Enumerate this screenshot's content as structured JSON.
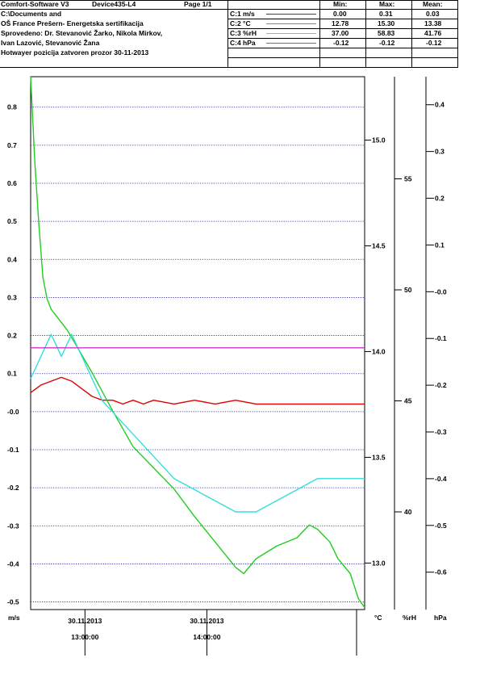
{
  "header": {
    "app": "Comfort-Software V3",
    "device": "Device435-L4",
    "page": "Page 1/1",
    "info_lines": [
      "C:\\Documents and",
      "OŠ France Prešern- Energetska sertifikacija",
      "Sprovedeno: Dr. Stevanović Žarko, Nikola Mirkov,",
      "Ivan Lazović, Stevanović Žana",
      "Hotwayer pozicija zatvoren prozor 30-11-2013"
    ],
    "col_min": "Min:",
    "col_max": "Max:",
    "col_mean": "Mean:",
    "channels": [
      {
        "label": "C:1 m/s",
        "color": "#e00000",
        "min": "0.00",
        "max": "0.31",
        "mean": "0.03"
      },
      {
        "label": "C:2 °C",
        "color": "#22cc22",
        "min": "12.78",
        "max": "15.30",
        "mean": "13.38"
      },
      {
        "label": "C:3 %rH",
        "color": "#33dddd",
        "min": "37.00",
        "max": "58.83",
        "mean": "41.76"
      },
      {
        "label": "C:4 hPa",
        "color": "#cc33cc",
        "min": "-0.12",
        "max": "-0.12",
        "mean": "-0.12"
      }
    ]
  },
  "chart_data": {
    "type": "line",
    "axes": {
      "ms": {
        "unit": "m/s",
        "range": [
          -0.52,
          0.88
        ],
        "ticks": [
          "0.8",
          "0.7",
          "0.6",
          "0.5",
          "0.4",
          "0.3",
          "0.2",
          "0.1",
          "-0.0",
          "-0.1",
          "-0.2",
          "-0.3",
          "-0.4",
          "-0.5"
        ],
        "tick_values": [
          0.8,
          0.7,
          0.6,
          0.5,
          0.4,
          0.3,
          0.2,
          0.1,
          0,
          -0.1,
          -0.2,
          -0.3,
          -0.4,
          -0.5
        ],
        "grid": true
      },
      "c": {
        "unit": "°C",
        "range": [
          12.78,
          15.3
        ],
        "ticks": [
          "15.0",
          "14.5",
          "14.0",
          "13.5",
          "13.0"
        ],
        "tick_values": [
          15.0,
          14.5,
          14.0,
          13.5,
          13.0
        ]
      },
      "rh": {
        "unit": "%rH",
        "range": [
          35.6,
          59.6
        ],
        "ticks": [
          "55",
          "50",
          "45",
          "40"
        ],
        "tick_values": [
          55,
          50,
          45,
          40
        ]
      },
      "hpa": {
        "unit": "hPa",
        "range": [
          -0.68,
          0.46
        ],
        "ticks": [
          "0.4",
          "0.3",
          "0.2",
          "0.1",
          "-0.0",
          "-0.1",
          "-0.2",
          "-0.3",
          "-0.4",
          "-0.5",
          "-0.6"
        ],
        "tick_values": [
          0.4,
          0.3,
          0.2,
          0.1,
          0,
          -0.1,
          -0.2,
          -0.3,
          -0.4,
          -0.5,
          -0.6
        ]
      }
    },
    "x_ticks": [
      {
        "date": "30.11.2013",
        "time": "13:00:00",
        "minutes": 26.5
      },
      {
        "date": "30.11.2013",
        "time": "14:00:00",
        "minutes": 86.0
      }
    ],
    "x_range_minutes": [
      0,
      163
    ],
    "series": [
      {
        "name": "C:1 m/s",
        "axis": "ms",
        "color": "#e00000",
        "x": [
          0,
          5,
          10,
          15,
          20,
          25,
          30,
          35,
          40,
          45,
          50,
          55,
          60,
          70,
          80,
          90,
          100,
          110,
          120,
          130,
          140,
          150,
          160,
          163
        ],
        "y": [
          0.05,
          0.07,
          0.08,
          0.09,
          0.08,
          0.06,
          0.04,
          0.03,
          0.03,
          0.02,
          0.03,
          0.02,
          0.03,
          0.02,
          0.03,
          0.02,
          0.03,
          0.02,
          0.02,
          0.02,
          0.02,
          0.02,
          0.02,
          0.02
        ]
      },
      {
        "name": "C:2 °C",
        "axis": "c",
        "color": "#22cc22",
        "x": [
          0,
          2,
          4,
          6,
          8,
          10,
          14,
          18,
          24,
          30,
          40,
          50,
          60,
          70,
          80,
          90,
          100,
          104,
          110,
          120,
          130,
          136,
          140,
          146,
          150,
          156,
          160,
          163
        ],
        "y": [
          15.3,
          14.9,
          14.6,
          14.35,
          14.25,
          14.2,
          14.15,
          14.1,
          14.0,
          13.9,
          13.72,
          13.55,
          13.45,
          13.35,
          13.22,
          13.1,
          12.98,
          12.95,
          13.02,
          13.08,
          13.12,
          13.18,
          13.16,
          13.1,
          13.02,
          12.95,
          12.83,
          12.79
        ]
      },
      {
        "name": "C:3 %rH",
        "axis": "rh",
        "color": "#33dddd",
        "x": [
          0,
          5,
          10,
          15,
          20,
          25,
          30,
          35,
          40,
          50,
          60,
          70,
          80,
          90,
          100,
          110,
          120,
          130,
          140,
          150,
          163
        ],
        "y": [
          46,
          47,
          48,
          47,
          48,
          47,
          46,
          45,
          44.5,
          43.5,
          42.5,
          41.5,
          41,
          40.5,
          40,
          40,
          40.5,
          41,
          41.5,
          41.5,
          41.5
        ]
      },
      {
        "name": "C:4 hPa",
        "axis": "hpa",
        "color": "#cc33cc",
        "x": [
          0,
          163
        ],
        "y": [
          -0.12,
          -0.12
        ]
      }
    ]
  }
}
